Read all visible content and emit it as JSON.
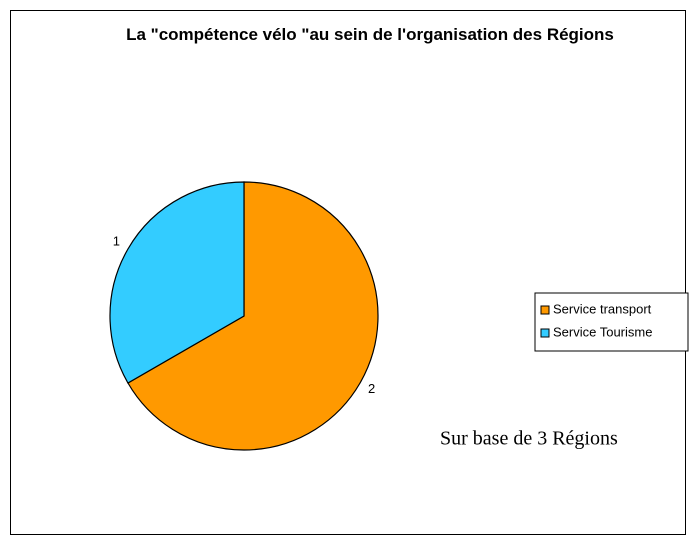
{
  "chart_data": {
    "type": "pie",
    "title": "La \"compétence vélo \"au sein de l'organisation des Régions",
    "categories": [
      "Service transport",
      "Service Tourisme"
    ],
    "values": [
      2,
      1
    ],
    "colors": [
      "#ff9900",
      "#33ccff"
    ],
    "annotation": "Sur base de 3 Régions",
    "legend": "right"
  }
}
